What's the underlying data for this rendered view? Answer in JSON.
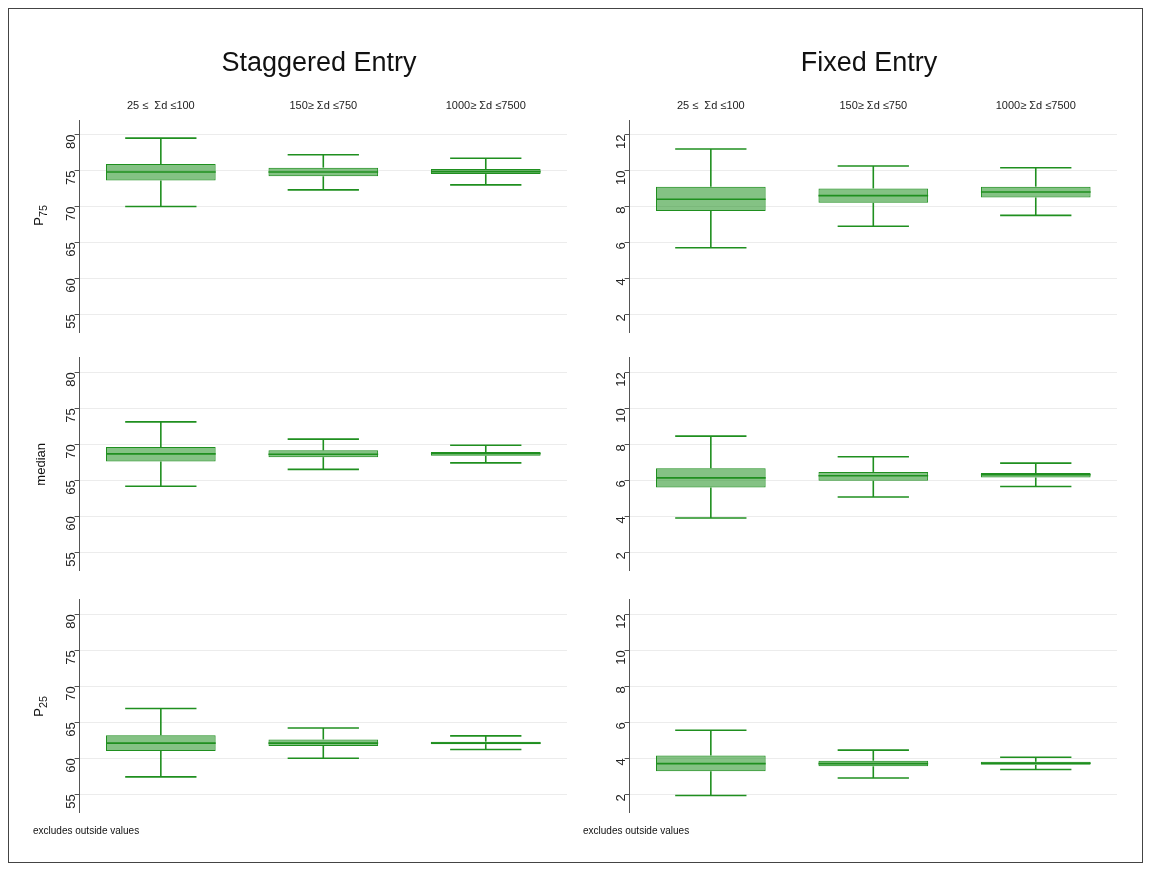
{
  "chart_data": [
    {
      "type": "box",
      "title": "Staggered Entry",
      "ylabel": "P$_{75}$",
      "categories": [
        "25 ≤  Σd ≤100",
        "150≥ Σd ≤750",
        "1000≥ Σd ≤7500"
      ],
      "color": "#1f8f1f",
      "ylim": [
        52.5,
        82
      ],
      "yticks": [
        55,
        60,
        65,
        70,
        75,
        80
      ],
      "grid": "y",
      "boxes": [
        {
          "low": 70.0,
          "q1": 73.6,
          "median": 74.8,
          "q3": 75.9,
          "high": 79.5
        },
        {
          "low": 72.3,
          "q1": 74.2,
          "median": 74.8,
          "q3": 75.4,
          "high": 77.2
        },
        {
          "low": 73.0,
          "q1": 74.5,
          "median": 74.85,
          "q3": 75.2,
          "high": 76.7
        }
      ]
    },
    {
      "type": "box",
      "title": "Fixed Entry",
      "categories": [
        "25 ≤  Σd ≤100",
        "150≥ Σd ≤750",
        "1000≥ Σd ≤7500"
      ],
      "color": "#1f8f1f",
      "ylim": [
        1,
        12.8
      ],
      "yticks": [
        2,
        4,
        6,
        8,
        10,
        12
      ],
      "grid": "y",
      "boxes": [
        {
          "low": 5.7,
          "q1": 7.75,
          "median": 8.4,
          "q3": 9.1,
          "high": 11.2
        },
        {
          "low": 6.9,
          "q1": 8.2,
          "median": 8.6,
          "q3": 9.0,
          "high": 10.25
        },
        {
          "low": 7.5,
          "q1": 8.5,
          "median": 8.8,
          "q3": 9.1,
          "high": 10.15
        }
      ]
    },
    {
      "type": "box",
      "ylabel": "median",
      "categories": [
        null,
        null,
        null
      ],
      "color": "#1f8f1f",
      "ylim": [
        52.5,
        82
      ],
      "yticks": [
        55,
        60,
        65,
        70,
        75,
        80
      ],
      "grid": "y",
      "boxes": [
        {
          "low": 64.15,
          "q1": 67.6,
          "median": 68.65,
          "q3": 69.6,
          "high": 73.1
        },
        {
          "low": 66.5,
          "q1": 68.2,
          "median": 68.6,
          "q3": 69.15,
          "high": 70.7
        },
        {
          "low": 67.4,
          "q1": 68.4,
          "median": 68.7,
          "q3": 68.9,
          "high": 69.85
        }
      ]
    },
    {
      "type": "box",
      "categories": [
        null,
        null,
        null
      ],
      "color": "#1f8f1f",
      "ylim": [
        1,
        12.8
      ],
      "yticks": [
        2,
        4,
        6,
        8,
        10,
        12
      ],
      "grid": "y",
      "boxes": [
        {
          "low": 3.9,
          "q1": 5.6,
          "median": 6.13,
          "q3": 6.67,
          "high": 8.45
        },
        {
          "low": 5.07,
          "q1": 5.97,
          "median": 6.25,
          "q3": 6.46,
          "high": 7.3
        },
        {
          "low": 5.65,
          "q1": 6.15,
          "median": 6.3,
          "q3": 6.4,
          "high": 6.95
        }
      ]
    },
    {
      "type": "box",
      "ylabel": "P$_{25}$",
      "categories": [
        null,
        null,
        null
      ],
      "color": "#1f8f1f",
      "ylim": [
        52.5,
        82
      ],
      "yticks": [
        55,
        60,
        65,
        70,
        75,
        80
      ],
      "grid": "y",
      "annotations": [
        "excludes outside values"
      ],
      "boxes": [
        {
          "low": 57.4,
          "q1": 61.0,
          "median": 62.1,
          "q3": 63.2,
          "high": 66.9
        },
        {
          "low": 60.0,
          "q1": 61.7,
          "median": 62.1,
          "q3": 62.6,
          "high": 64.2
        },
        {
          "low": 61.2,
          "q1": 61.95,
          "median": 62.1,
          "q3": 62.3,
          "high": 63.1
        }
      ]
    },
    {
      "type": "box",
      "categories": [
        null,
        null,
        null
      ],
      "color": "#1f8f1f",
      "ylim": [
        1,
        12.8
      ],
      "yticks": [
        2,
        4,
        6,
        8,
        10,
        12
      ],
      "grid": "y",
      "annotations": [
        "excludes outside values"
      ],
      "boxes": [
        {
          "low": 1.93,
          "q1": 3.27,
          "median": 3.7,
          "q3": 4.15,
          "high": 5.55
        },
        {
          "low": 2.9,
          "q1": 3.55,
          "median": 3.7,
          "q3": 3.86,
          "high": 4.45
        },
        {
          "low": 3.37,
          "q1": 3.63,
          "median": 3.72,
          "q3": 3.8,
          "high": 4.05
        }
      ]
    }
  ]
}
